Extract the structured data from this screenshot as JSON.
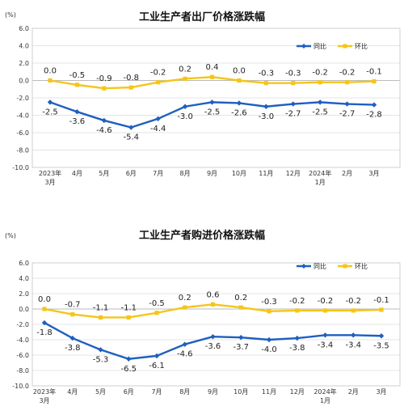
{
  "chart_data": [
    {
      "type": "line",
      "title": "工业生产者出厂价格涨跌幅",
      "unit": "(%)",
      "ylim": [
        -10.0,
        6.0
      ],
      "yticks": [
        "6.0",
        "4.0",
        "2.0",
        "0.0",
        "-2.0",
        "-4.0",
        "-6.0",
        "-8.0",
        "-10.0"
      ],
      "categories": [
        [
          "2023年",
          "3月"
        ],
        [
          "4月"
        ],
        [
          "5月"
        ],
        [
          "6月"
        ],
        [
          "7月"
        ],
        [
          "8月"
        ],
        [
          "9月"
        ],
        [
          "10月"
        ],
        [
          "11月"
        ],
        [
          "12月"
        ],
        [
          "2024年",
          "1月"
        ],
        [
          "2月"
        ],
        [
          "3月"
        ]
      ],
      "legend": "top-right",
      "series": [
        {
          "name": "同比",
          "color": "#1f5fbf",
          "values": [
            -2.5,
            -3.6,
            -4.6,
            -5.4,
            -4.4,
            -3.0,
            -2.5,
            -2.6,
            -3.0,
            -2.7,
            -2.5,
            -2.7,
            -2.8
          ],
          "labels": [
            "-2.5",
            "-3.6",
            "-4.6",
            "-5.4",
            "-4.4",
            "-3.0",
            "-2.5",
            "-2.6",
            "-3.0",
            "-2.7",
            "-2.5",
            "-2.7",
            "-2.8"
          ]
        },
        {
          "name": "环比",
          "color": "#f5c518",
          "values": [
            0.0,
            -0.5,
            -0.9,
            -0.8,
            -0.2,
            0.2,
            0.4,
            0.0,
            -0.3,
            -0.3,
            -0.2,
            -0.2,
            -0.1
          ],
          "labels": [
            "0.0",
            "-0.5",
            "-0.9",
            "-0.8",
            "-0.2",
            "0.2",
            "0.4",
            "0.0",
            "-0.3",
            "-0.3",
            "-0.2",
            "-0.2",
            "-0.1"
          ]
        }
      ]
    },
    {
      "type": "line",
      "title": "工业生产者购进价格涨跌幅",
      "unit": "(%)",
      "ylim": [
        -10.0,
        6.0
      ],
      "yticks": [
        "6.0",
        "4.0",
        "2.0",
        "0.0",
        "-2.0",
        "-4.0",
        "-6.0",
        "-8.0",
        "-10.0"
      ],
      "categories": [
        [
          "2023年",
          "3月"
        ],
        [
          "4月"
        ],
        [
          "5月"
        ],
        [
          "6月"
        ],
        [
          "7月"
        ],
        [
          "8月"
        ],
        [
          "9月"
        ],
        [
          "10月"
        ],
        [
          "11月"
        ],
        [
          "12月"
        ],
        [
          "2024年",
          "1月"
        ],
        [
          "2月"
        ],
        [
          "3月"
        ]
      ],
      "legend": "top-right",
      "series": [
        {
          "name": "同比",
          "color": "#1f5fbf",
          "values": [
            -1.8,
            -3.8,
            -5.3,
            -6.5,
            -6.1,
            -4.6,
            -3.6,
            -3.7,
            -4.0,
            -3.8,
            -3.4,
            -3.4,
            -3.5
          ],
          "labels": [
            "-1.8",
            "-3.8",
            "-5.3",
            "-6.5",
            "-6.1",
            "-4.6",
            "-3.6",
            "-3.7",
            "-4.0",
            "-3.8",
            "-3.4",
            "-3.4",
            "-3.5"
          ]
        },
        {
          "name": "环比",
          "color": "#f5c518",
          "values": [
            0.0,
            -0.7,
            -1.1,
            -1.1,
            -0.5,
            0.2,
            0.6,
            0.2,
            -0.3,
            -0.2,
            -0.2,
            -0.2,
            -0.1
          ],
          "labels": [
            "0.0",
            "-0.7",
            "-1.1",
            "-1.1",
            "-0.5",
            "0.2",
            "0.6",
            "0.2",
            "-0.3",
            "-0.2",
            "-0.2",
            "-0.2",
            "-0.1"
          ]
        }
      ]
    }
  ]
}
